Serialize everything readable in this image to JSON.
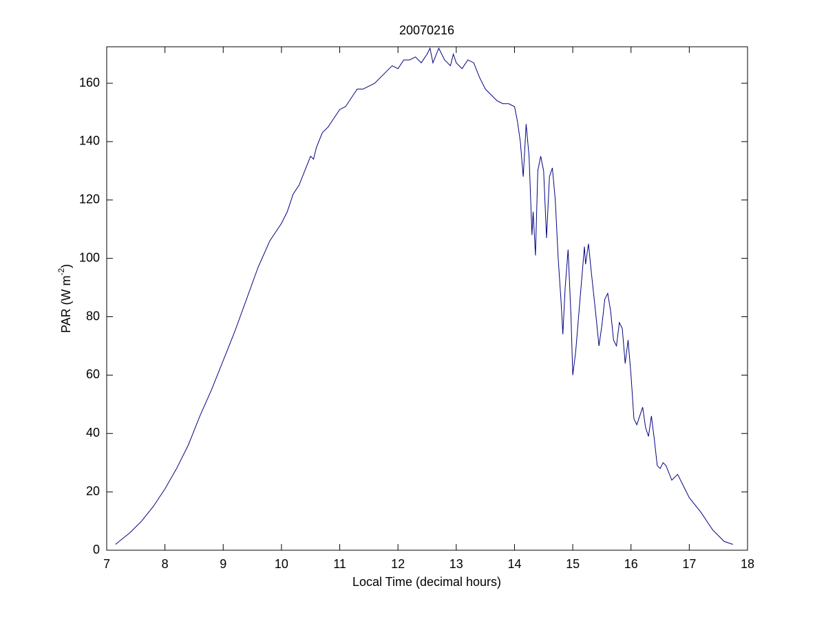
{
  "chart_data": {
    "type": "line",
    "title": "20070216",
    "xlabel": "Local Time (decimal hours)",
    "ylabel": {
      "base": "PAR (W m",
      "superscript": "-2",
      "end": ")"
    },
    "xlim": [
      7,
      18
    ],
    "xticks": [
      7,
      8,
      9,
      10,
      11,
      12,
      13,
      14,
      15,
      16,
      17,
      18
    ],
    "ylim": [
      0,
      172.5
    ],
    "yticks": [
      0,
      20,
      40,
      60,
      80,
      100,
      120,
      140,
      160
    ],
    "grid": false,
    "x": [
      7.15,
      7.4,
      7.6,
      7.8,
      8.0,
      8.2,
      8.4,
      8.6,
      8.8,
      9.0,
      9.2,
      9.4,
      9.6,
      9.8,
      10.0,
      10.1,
      10.2,
      10.3,
      10.4,
      10.5,
      10.55,
      10.6,
      10.7,
      10.8,
      10.9,
      11.0,
      11.1,
      11.2,
      11.3,
      11.4,
      11.5,
      11.6,
      11.7,
      11.8,
      11.9,
      12.0,
      12.1,
      12.2,
      12.3,
      12.4,
      12.5,
      12.55,
      12.6,
      12.7,
      12.8,
      12.9,
      12.95,
      13.0,
      13.1,
      13.2,
      13.3,
      13.4,
      13.5,
      13.6,
      13.7,
      13.8,
      13.9,
      14.0,
      14.05,
      14.1,
      14.15,
      14.2,
      14.25,
      14.3,
      14.32,
      14.36,
      14.4,
      14.45,
      14.5,
      14.55,
      14.6,
      14.65,
      14.7,
      14.75,
      14.8,
      14.83,
      14.87,
      14.92,
      14.97,
      15.0,
      15.05,
      15.1,
      15.15,
      15.2,
      15.22,
      15.27,
      15.32,
      15.4,
      15.45,
      15.5,
      15.55,
      15.6,
      15.65,
      15.7,
      15.75,
      15.8,
      15.85,
      15.9,
      15.95,
      16.0,
      16.05,
      16.1,
      16.15,
      16.2,
      16.25,
      16.3,
      16.35,
      16.4,
      16.45,
      16.5,
      16.55,
      16.6,
      16.7,
      16.8,
      16.9,
      17.0,
      17.2,
      17.4,
      17.6,
      17.75
    ],
    "series": [
      {
        "color": "#000080",
        "values": [
          2,
          6,
          10,
          15,
          21,
          28,
          36,
          46,
          55,
          65,
          75,
          86,
          97,
          106,
          112,
          116,
          122,
          125,
          130,
          135,
          134,
          138,
          143,
          145,
          148,
          151,
          152,
          155,
          158,
          158,
          159,
          160,
          162,
          164,
          166,
          165,
          168,
          168,
          169,
          167,
          170,
          172,
          167,
          172,
          168,
          166,
          170,
          167,
          165,
          168,
          167,
          162,
          158,
          156,
          154,
          153,
          153,
          152,
          147,
          140,
          128,
          146,
          135,
          108,
          116,
          101,
          130,
          135,
          130,
          107,
          128,
          131,
          120,
          100,
          85,
          74,
          90,
          103,
          80,
          60,
          68,
          80,
          92,
          104,
          98,
          105,
          95,
          80,
          70,
          77,
          86,
          88,
          82,
          72,
          70,
          78,
          76,
          64,
          72,
          60,
          45,
          43,
          46,
          49,
          42,
          39,
          46,
          38,
          29,
          28,
          30,
          29,
          24,
          26,
          22,
          18,
          13,
          7,
          3,
          2
        ]
      }
    ]
  }
}
